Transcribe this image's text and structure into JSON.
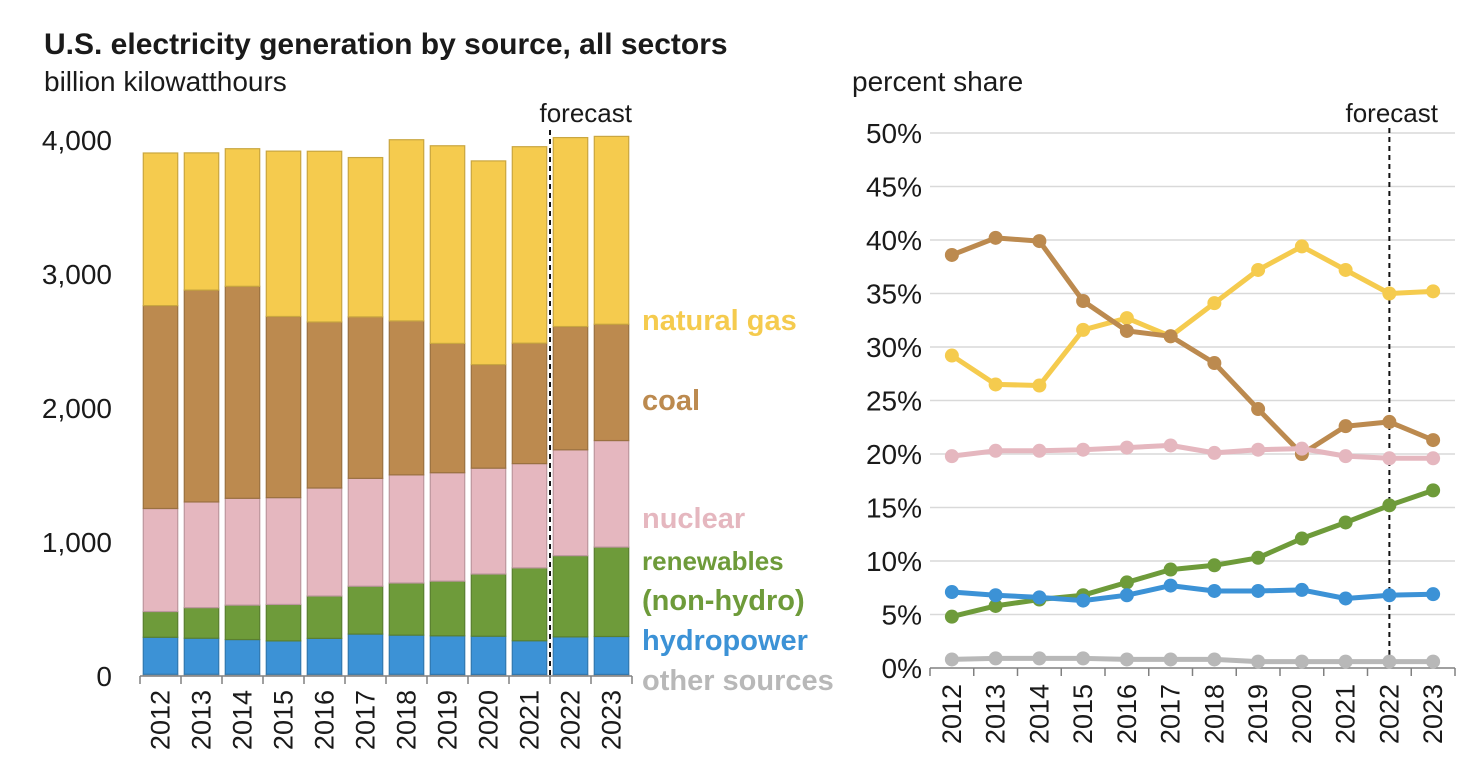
{
  "title": "U.S. electricity generation by source, all sectors",
  "left_unit": "billion kilowatthours",
  "right_unit": "percent share",
  "colors": {
    "natural_gas": "#F5CB4E",
    "coal": "#BC8A4F",
    "nuclear": "#E5B7BF",
    "renewables": "#6E9B3A",
    "hydropower": "#3C92D6",
    "other": "#B8B8B8"
  },
  "chart_data": [
    {
      "type": "bar",
      "stacked": true,
      "categories": [
        "2012",
        "2013",
        "2014",
        "2015",
        "2016",
        "2017",
        "2018",
        "2019",
        "2020",
        "2021",
        "2022",
        "2023"
      ],
      "ylim": [
        0,
        4000
      ],
      "yticks": [
        "0",
        "1,000",
        "2,000",
        "3,000",
        "4,000"
      ],
      "forecast_label": "forecast",
      "forecast_from": "2022",
      "series": [
        {
          "name": "other sources",
          "key": "other",
          "values": [
            13,
            13,
            13,
            13,
            13,
            13,
            13,
            12,
            12,
            12,
            12,
            12
          ]
        },
        {
          "name": "hydropower",
          "key": "hydropower",
          "values": [
            276,
            269,
            259,
            249,
            268,
            300,
            292,
            288,
            285,
            251,
            280,
            283
          ]
        },
        {
          "name": "renewables (non-hydro)",
          "key": "renewables",
          "values": [
            192,
            228,
            257,
            272,
            316,
            357,
            389,
            408,
            464,
            544,
            606,
            667
          ]
        },
        {
          "name": "nuclear",
          "key": "nuclear",
          "values": [
            769,
            789,
            797,
            797,
            806,
            805,
            807,
            809,
            790,
            778,
            790,
            795
          ]
        },
        {
          "name": "coal",
          "key": "coal",
          "values": [
            1514,
            1581,
            1582,
            1352,
            1239,
            1205,
            1149,
            965,
            773,
            899,
            920,
            868
          ]
        },
        {
          "name": "natural gas",
          "key": "natural_gas",
          "values": [
            1139,
            1024,
            1027,
            1234,
            1274,
            1189,
            1352,
            1475,
            1520,
            1466,
            1410,
            1402
          ]
        }
      ],
      "labels": [
        {
          "key": "natural_gas",
          "text": "natural gas"
        },
        {
          "key": "coal",
          "text": "coal"
        },
        {
          "key": "nuclear",
          "text": "nuclear"
        },
        {
          "key": "renewables",
          "text": "renewables"
        },
        {
          "key": "renewables",
          "text": "(non-hydro)"
        },
        {
          "key": "hydropower",
          "text": "hydropower"
        },
        {
          "key": "other",
          "text": "other sources"
        }
      ]
    },
    {
      "type": "line",
      "x": [
        "2012",
        "2013",
        "2014",
        "2015",
        "2016",
        "2017",
        "2018",
        "2019",
        "2020",
        "2021",
        "2022",
        "2023"
      ],
      "ylim": [
        0,
        50
      ],
      "yticks": [
        "0%",
        "5%",
        "10%",
        "15%",
        "20%",
        "25%",
        "30%",
        "35%",
        "40%",
        "45%",
        "50%"
      ],
      "forecast_label": "forecast",
      "forecast_from": "2022",
      "series": [
        {
          "key": "natural_gas",
          "values": [
            29.2,
            26.5,
            26.4,
            31.6,
            32.7,
            31.0,
            34.1,
            37.2,
            39.4,
            37.2,
            35.0,
            35.2
          ]
        },
        {
          "key": "coal",
          "values": [
            38.6,
            40.2,
            39.9,
            34.3,
            31.5,
            31.0,
            28.5,
            24.2,
            20.0,
            22.6,
            23.0,
            21.3
          ]
        },
        {
          "key": "nuclear",
          "values": [
            19.8,
            20.3,
            20.3,
            20.4,
            20.6,
            20.8,
            20.1,
            20.4,
            20.5,
            19.8,
            19.6,
            19.6
          ]
        },
        {
          "key": "renewables",
          "values": [
            4.8,
            5.8,
            6.4,
            6.8,
            8.0,
            9.2,
            9.6,
            10.3,
            12.1,
            13.6,
            15.2,
            16.6
          ]
        },
        {
          "key": "hydropower",
          "values": [
            7.1,
            6.8,
            6.6,
            6.3,
            6.8,
            7.7,
            7.2,
            7.2,
            7.3,
            6.5,
            6.8,
            6.9
          ]
        },
        {
          "key": "other",
          "values": [
            0.8,
            0.9,
            0.9,
            0.9,
            0.8,
            0.8,
            0.8,
            0.6,
            0.6,
            0.6,
            0.6,
            0.6
          ]
        }
      ]
    }
  ]
}
